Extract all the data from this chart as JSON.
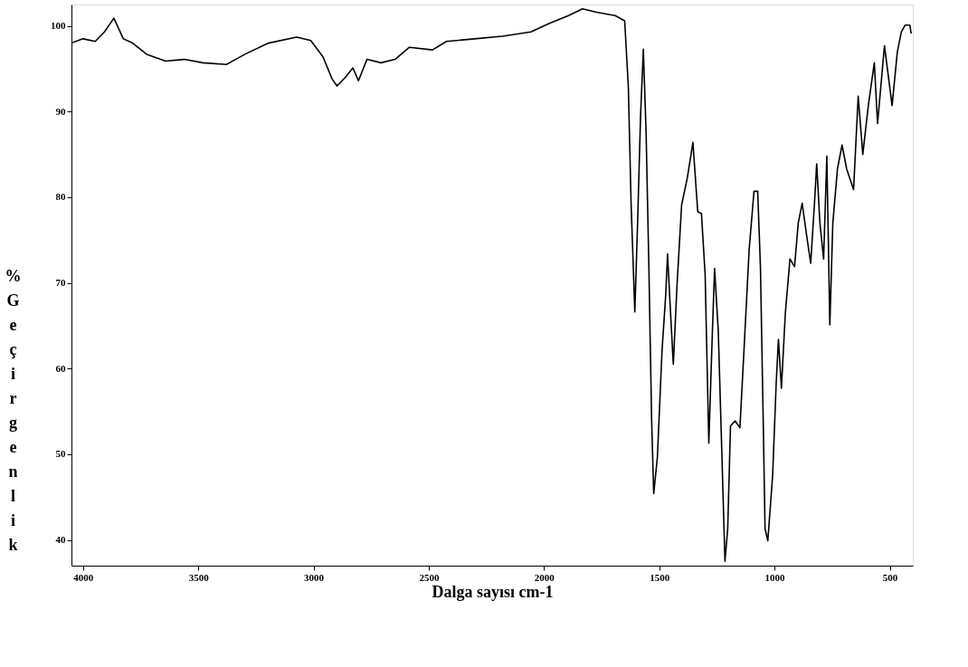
{
  "chart_data": {
    "type": "line",
    "xlabel": "Dalga sayısı    cm-1",
    "ylabel": "% Geçirgenlik",
    "xlim": [
      4050,
      400
    ],
    "ylim": [
      37,
      102.5
    ],
    "xticks": [
      4000,
      3500,
      3000,
      2500,
      2000,
      1500,
      1000,
      500
    ],
    "yticks": [
      100,
      90,
      80,
      70,
      60,
      50,
      40
    ],
    "grid": false,
    "marker": "none",
    "line_style": "solid",
    "series": [
      {
        "color": "#000000",
        "x": [
          4050,
          4000,
          3947,
          3907,
          3866,
          3825,
          3785,
          3724,
          3642,
          3561,
          3480,
          3378,
          3297,
          3195,
          3073,
          3012,
          2959,
          2919,
          2898,
          2862,
          2829,
          2805,
          2768,
          2707,
          2646,
          2585,
          2484,
          2423,
          2301,
          2179,
          2057,
          1976,
          1894,
          1833,
          1772,
          1691,
          1650,
          1634,
          1622,
          1606,
          1594,
          1581,
          1569,
          1557,
          1545,
          1533,
          1524,
          1508,
          1488,
          1472,
          1464,
          1451,
          1439,
          1423,
          1403,
          1378,
          1354,
          1333,
          1317,
          1301,
          1285,
          1272,
          1260,
          1244,
          1228,
          1215,
          1203,
          1191,
          1171,
          1150,
          1130,
          1110,
          1089,
          1073,
          1061,
          1049,
          1041,
          1029,
          1008,
          993,
          983,
          970,
          953,
          933,
          913,
          897,
          880,
          863,
          843,
          827,
          817,
          803,
          787,
          773,
          760,
          747,
          727,
          707,
          687,
          657,
          637,
          617,
          593,
          567,
          553,
          523,
          490,
          467,
          450,
          433,
          413,
          407
        ],
        "values": [
          98.0,
          98.5,
          98.2,
          99.3,
          100.9,
          98.5,
          98.0,
          96.7,
          95.9,
          96.1,
          95.7,
          95.5,
          96.7,
          98.0,
          98.7,
          98.3,
          96.4,
          93.8,
          93.0,
          94.0,
          95.1,
          93.6,
          96.1,
          95.7,
          96.1,
          97.5,
          97.2,
          98.2,
          98.5,
          98.8,
          99.3,
          100.3,
          101.2,
          102.0,
          101.6,
          101.2,
          100.6,
          92.8,
          79.1,
          66.6,
          77.0,
          89.6,
          97.3,
          87.5,
          71.8,
          53.9,
          45.4,
          49.7,
          62.1,
          68.6,
          73.4,
          66.5,
          60.5,
          69.7,
          79.1,
          82.3,
          86.4,
          78.3,
          78.1,
          71.0,
          51.3,
          62.3,
          71.7,
          64.4,
          49.7,
          37.5,
          41.3,
          53.3,
          53.9,
          53.1,
          63.4,
          73.9,
          80.7,
          80.7,
          71.8,
          53.9,
          41.3,
          39.9,
          47.6,
          58.1,
          63.4,
          57.7,
          66.5,
          72.8,
          71.9,
          77.0,
          79.3,
          76.0,
          72.3,
          79.1,
          83.9,
          77.0,
          72.8,
          84.8,
          65.1,
          77.0,
          83.3,
          86.1,
          83.3,
          80.9,
          91.8,
          85.0,
          90.7,
          95.7,
          88.6,
          97.7,
          90.7,
          97.0,
          99.3,
          100.1,
          100.1,
          99.1
        ]
      }
    ]
  }
}
